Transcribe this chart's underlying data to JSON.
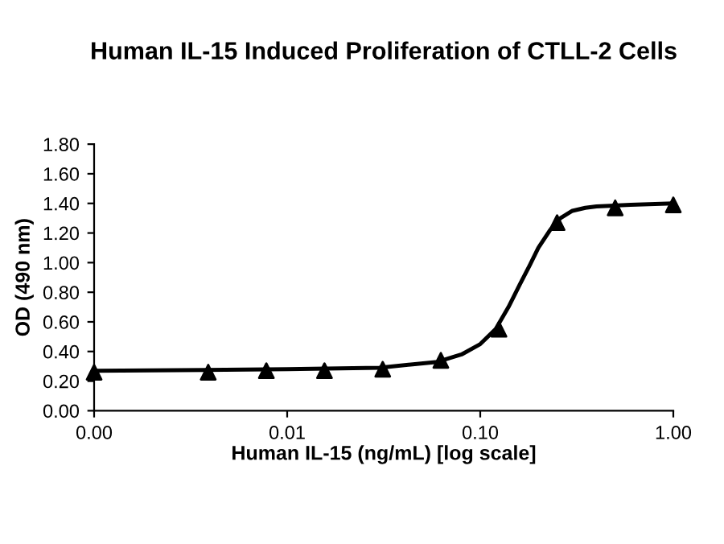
{
  "chart_data": {
    "type": "scatter",
    "title": "Human IL-15 Induced Proliferation of CTLL-2 Cells",
    "xlabel": "Human IL-15 (ng/mL) [log scale]",
    "ylabel": "OD (490 nm)",
    "log": "x",
    "series": [
      {
        "color": "#000000",
        "marker": "triangle",
        "x": [
          0.001,
          0.0039,
          0.0078,
          0.0156,
          0.03125,
          0.0625,
          0.125,
          0.25,
          0.5,
          1.0
        ],
        "values": [
          0.26,
          0.26,
          0.27,
          0.27,
          0.28,
          0.34,
          0.55,
          1.27,
          1.37,
          1.39
        ]
      },
      {
        "type": "line",
        "color": "#000000",
        "marker": "none",
        "line_style": "solid",
        "x": [
          0.001,
          0.01,
          0.03,
          0.06,
          0.08,
          0.1,
          0.12,
          0.14,
          0.16,
          0.18,
          0.2,
          0.23,
          0.26,
          0.3,
          0.35,
          0.4,
          0.6,
          1.0
        ],
        "values": [
          0.27,
          0.28,
          0.29,
          0.33,
          0.38,
          0.45,
          0.55,
          0.7,
          0.85,
          0.98,
          1.1,
          1.22,
          1.3,
          1.35,
          1.37,
          1.38,
          1.39,
          1.4
        ]
      }
    ],
    "xlim": [
      0.001,
      1.0
    ],
    "xticks": [
      {
        "value": 0.001,
        "label": "0.00"
      },
      {
        "value": 0.01,
        "label": "0.01"
      },
      {
        "value": 0.1,
        "label": "0.10"
      },
      {
        "value": 1.0,
        "label": "1.00"
      }
    ],
    "ylim": [
      0,
      1.8
    ],
    "yticks": [
      {
        "value": 0,
        "label": "0.00"
      },
      {
        "value": 0.2,
        "label": "0.20"
      },
      {
        "value": 0.4,
        "label": "0.40"
      },
      {
        "value": 0.6,
        "label": "0.60"
      },
      {
        "value": 0.8,
        "label": "0.80"
      },
      {
        "value": 1.0,
        "label": "1.00"
      },
      {
        "value": 1.2,
        "label": "1.20"
      },
      {
        "value": 1.4,
        "label": "1.40"
      },
      {
        "value": 1.6,
        "label": "1.60"
      },
      {
        "value": 1.8,
        "label": "1.80"
      }
    ],
    "grid": false,
    "legend": false
  }
}
